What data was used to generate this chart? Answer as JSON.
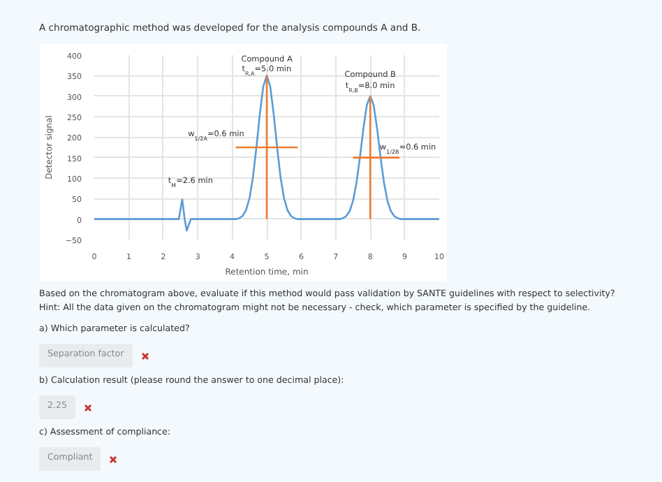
{
  "chart_data": {
    "type": "line",
    "title": "A chromatographic method was developed for the analysis compounds A and B.",
    "xlabel": "Retention time, min",
    "ylabel": "Detector signal",
    "xlim": [
      0,
      10
    ],
    "ylim": [
      -50,
      400
    ],
    "xticks": [
      0,
      1,
      2,
      3,
      4,
      5,
      6,
      7,
      8,
      9,
      10
    ],
    "yticks": [
      -50,
      0,
      50,
      100,
      150,
      200,
      250,
      300,
      350,
      400
    ],
    "grid": true,
    "marker": "none",
    "line_style": "solid",
    "series": [
      {
        "color": "#5b9bd5",
        "x": [
          0,
          2.45,
          2.55,
          2.62,
          2.68,
          2.8,
          4.1,
          4.2,
          4.3,
          4.4,
          4.5,
          4.6,
          4.7,
          4.8,
          4.9,
          5.0,
          5.1,
          5.2,
          5.3,
          5.4,
          5.5,
          5.6,
          5.7,
          5.8,
          5.9,
          7.1,
          7.2,
          7.3,
          7.4,
          7.5,
          7.6,
          7.7,
          7.8,
          7.9,
          8.0,
          8.1,
          8.2,
          8.3,
          8.4,
          8.5,
          8.6,
          8.7,
          8.8,
          8.9,
          10
        ],
        "values": [
          0,
          0,
          48,
          0,
          -28,
          0,
          0,
          2,
          8,
          22,
          51,
          102,
          175,
          257,
          324,
          350,
          324,
          257,
          175,
          102,
          51,
          22,
          8,
          2,
          0,
          0,
          2,
          7,
          19,
          44,
          88,
          150,
          220,
          278,
          300,
          278,
          220,
          150,
          88,
          44,
          19,
          7,
          2,
          0,
          0
        ]
      },
      {
        "color": "#ed7d31",
        "x": [
          5,
          5
        ],
        "values": [
          0,
          350
        ]
      },
      {
        "color": "#ed7d31",
        "x": [
          8,
          8
        ],
        "values": [
          0,
          300
        ]
      },
      {
        "color": "#ed7d31",
        "x": [
          4.1,
          5.9
        ],
        "values": [
          175,
          175
        ]
      },
      {
        "color": "#ed7d31",
        "x": [
          7.5,
          8.85
        ],
        "values": [
          150,
          150
        ]
      }
    ],
    "annotations": [
      {
        "text": "Compound A",
        "x": 5,
        "y": 350
      },
      {
        "text": "t$_{R,A}$=5.0 min",
        "x": 5,
        "y": 350
      },
      {
        "text": "Compound B",
        "x": 8,
        "y": 300
      },
      {
        "text": "t$_{R,B}$=8.0 min",
        "x": 8,
        "y": 300
      },
      {
        "text": "w$_{1/2A}$=0.6 min",
        "x": 4.1,
        "y": 175
      },
      {
        "text": "w$_{1/2B}$=0.6 min",
        "x": 8.85,
        "y": 150
      },
      {
        "text": "t$_{M}$=2.6 min",
        "x": 2.55,
        "y": 48
      },
      "Based on the chromatogram above, evaluate if this method would pass validation by SANTE guidelines with respect to selectivity?",
      "Hint: All the data given on the chromatogram might not be necessary - check, which parameter is specified by the guideline.",
      "a)    Which parameter is calculated?",
      "Separation factor",
      "b)    Calculation result (please round the answer to one decimal place):",
      "2.25",
      "c)    Assessment of compliance:",
      "Compliant"
    ]
  }
}
